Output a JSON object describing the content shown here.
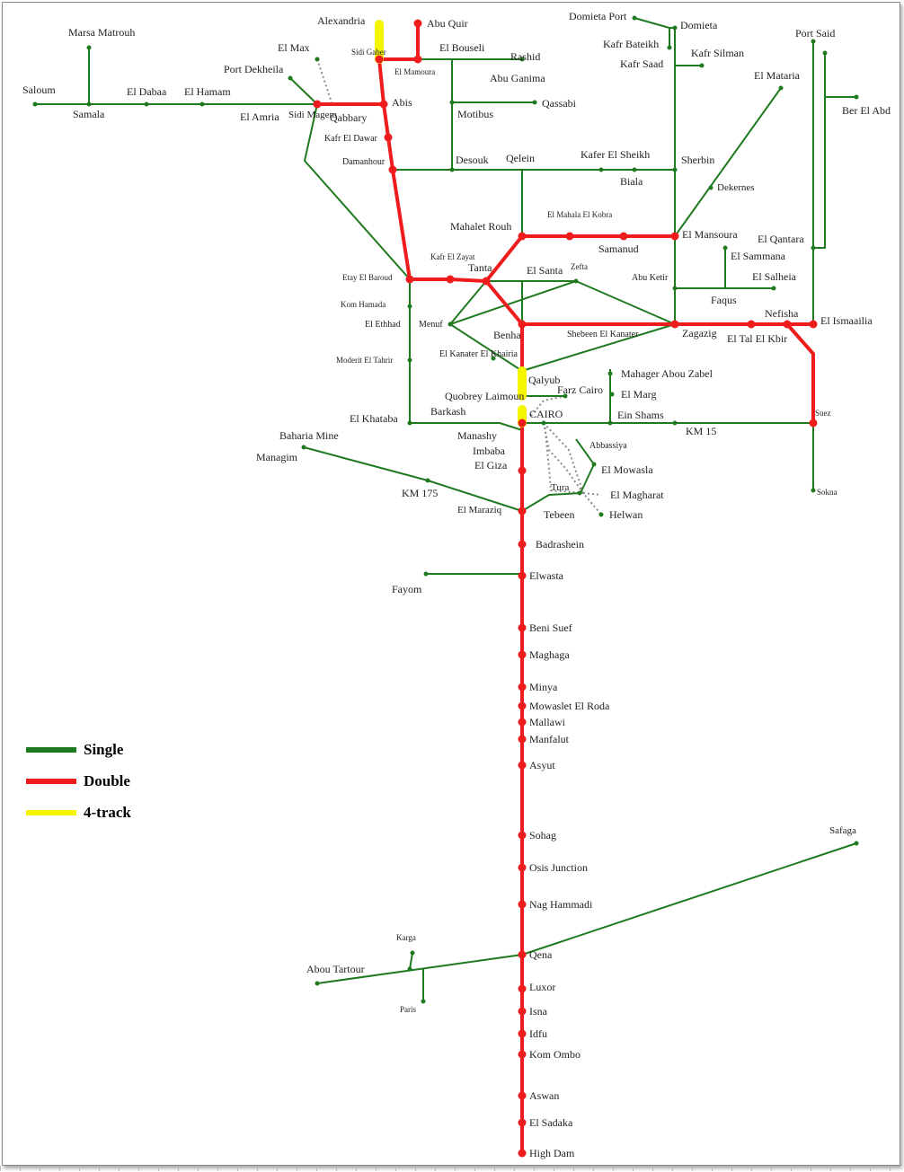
{
  "colors": {
    "single": "#1f7a1f",
    "double": "#ee1c1c",
    "four": "#f5f500",
    "planned": "#8c8c8c",
    "background": "#ffffff"
  },
  "legend": [
    {
      "key": "single",
      "label": "Single"
    },
    {
      "key": "double",
      "label": "Double"
    },
    {
      "key": "four",
      "label": "4-track"
    }
  ],
  "stations": {
    "alexandria": "Alexandria",
    "abu_quir": "Abu Quir",
    "sidi_gaber": "Sidi Gaber",
    "el_mamoura": "El Mamoura",
    "el_bouseli": "El Bouseli",
    "rashid": "Rashid",
    "abu_ganima": "Abu Ganima",
    "qassabi": "Qassabi",
    "motibus": "Motibus",
    "marsa_matrouh": "Marsa Matrouh",
    "saloum": "Saloum",
    "samala": "Samala",
    "el_dabaa": "El Dabaa",
    "el_hamam": "El Hamam",
    "el_amria": "El Amria",
    "el_max": "El Max",
    "port_dekheila": "Port Dekheila",
    "sidi_magem": "Sidi Magem",
    "qabbary": "Qabbary",
    "abis": "Abis",
    "kafr_el_dawar": "Kafr El Dawar",
    "damanhour": "Damanhour",
    "desouk": "Desouk",
    "qelein": "Qelein",
    "kafer_el_sheikh": "Kafer El Sheikh",
    "biala": "Biala",
    "sherbin": "Sherbin",
    "domieta_port": "Domieta Port",
    "domieta": "Domieta",
    "kafr_bateikh": "Kafr Bateikh",
    "kafr_saad": "Kafr Saad",
    "kafr_silman": "Kafr Silman",
    "port_said": "Port Said",
    "el_mataria": "El Mataria",
    "ber_el_abd": "Ber El Abd",
    "dekernes": "Dekernes",
    "el_mahala_el_kobra": "El Mahala El Kobra",
    "mahalet_rouh": "Mahalet Rouh",
    "samanud": "Samanud",
    "el_mansoura": "El Mansoura",
    "el_qantara": "El Qantara",
    "el_sammana": "El Sammana",
    "el_salheia": "El Salheia",
    "abu_ketir": "Abu Ketir",
    "faqus": "Faqus",
    "kafr_el_zayat": "Kafr El Zayat",
    "tanta": "Tanta",
    "zefta": "Zefta",
    "el_santa": "El Santa",
    "etay_el_baroud": "Etay El Baroud",
    "kom_hamada": "Kom Hamada",
    "el_ethhad": "El Ethhad",
    "menuf": "Menuf",
    "benha": "Benha",
    "shebeen_el_kanater": "Shebeen El Kanater",
    "zagazig": "Zagazig",
    "el_tal_el_kbir": "El Tal El Kbir",
    "nefisha": "Nefisha",
    "el_ismaailia": "El Ismaailia",
    "moderit_el_tahrir": "Moderit El Tahrir",
    "el_kanater_el_khairia": "El Kanater El Khairia",
    "qalyub": "Qalyub",
    "mahager_abou_zabel": "Mahager Abou Zabel",
    "quobrey_laimoun": "Quobrey Laimoun",
    "farz_cairo": "Farz Cairo",
    "el_marg": "El Marg",
    "cairo": "CAIRO",
    "ein_shams": "Ein Shams",
    "suez": "Suez",
    "km_15": "KM 15",
    "el_khataba": "El Khataba",
    "barkash": "Barkash",
    "manashy": "Manashy",
    "imbaba": "Imbaba",
    "el_giza": "El Giza",
    "abbassiya": "Abbassiya",
    "baharia_mine": "Baharia Mine",
    "managim": "Managim",
    "km_175": "KM 175",
    "el_mowasla": "El Mowasla",
    "tura": "Tura",
    "el_magharat": "El Magharat",
    "el_maraziq": "El Maraziq",
    "tebeen": "Tebeen",
    "helwan": "Helwan",
    "sokna": "Sokna",
    "badrashein": "Badrashein",
    "elwasta": "Elwasta",
    "fayom": "Fayom",
    "beni_suef": "Beni Suef",
    "maghaga": "Maghaga",
    "minya": "Minya",
    "mowaslet_el_roda": "Mowaslet El Roda",
    "mallawi": "Mallawi",
    "manfalut": "Manfalut",
    "asyut": "Asyut",
    "sohag": "Sohag",
    "osis_junction": "Osis Junction",
    "nag_hammadi": "Nag Hammadi",
    "safaga": "Safaga",
    "karga": "Karga",
    "abou_tartour": "Abou Tartour",
    "qena": "Qena",
    "paris": "Paris",
    "luxor": "Luxor",
    "isna": "Isna",
    "idfu": "Idfu",
    "kom_ombo": "Kom Ombo",
    "aswan": "Aswan",
    "el_sadaka": "El Sadaka",
    "high_dam": "High Dam"
  }
}
